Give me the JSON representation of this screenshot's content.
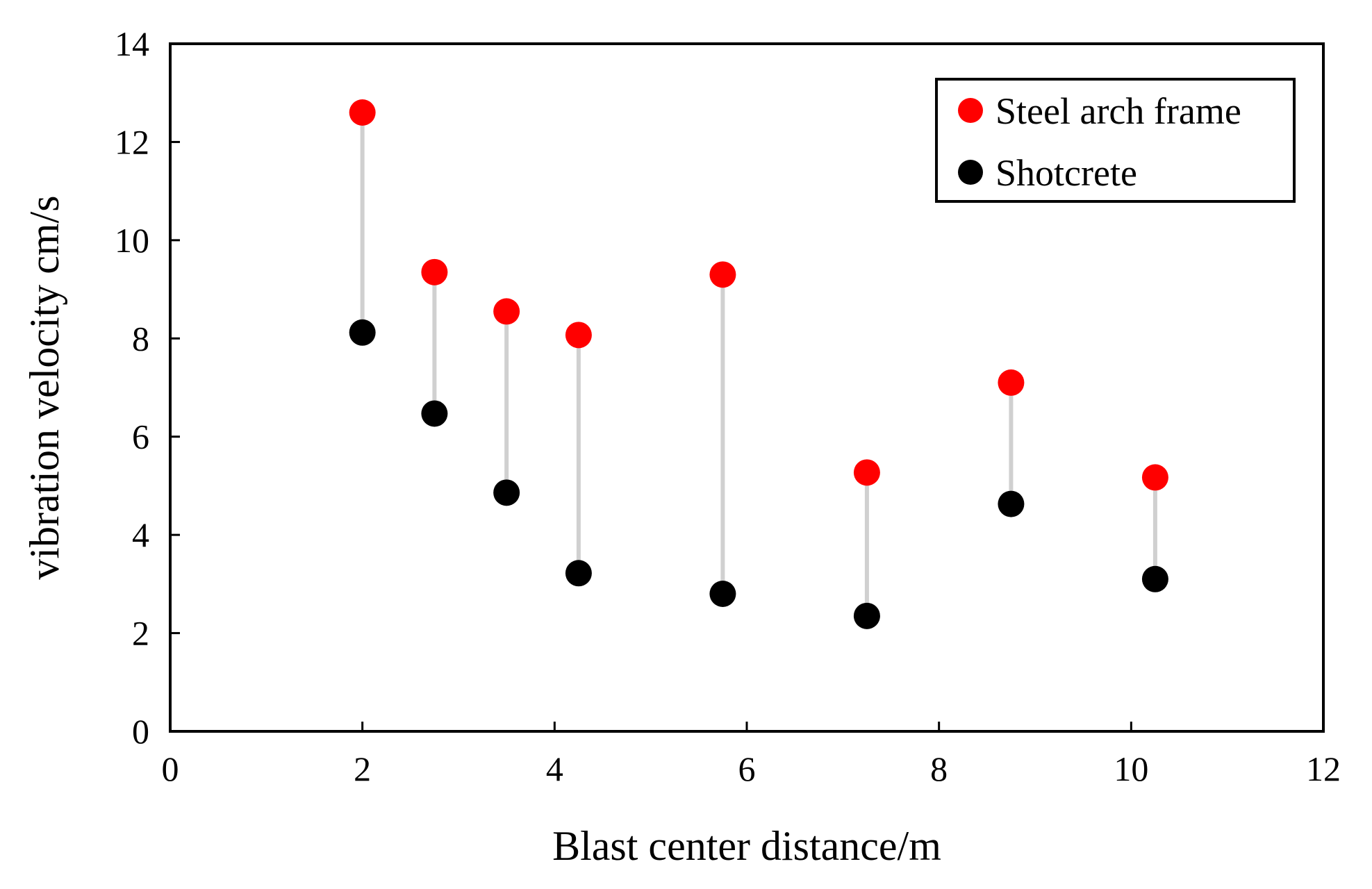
{
  "chart_data": {
    "type": "scatter",
    "title": "",
    "xlabel": "Blast center distance/m",
    "ylabel": "vibration velocity cm/s",
    "xlim": [
      0,
      12
    ],
    "ylim": [
      0,
      14
    ],
    "x_ticks": [
      0,
      2,
      4,
      6,
      8,
      10,
      12
    ],
    "y_ticks": [
      0,
      2,
      4,
      6,
      8,
      10,
      12,
      14
    ],
    "x_tick_labels": [
      "0",
      "2",
      "4",
      "6",
      "8",
      "10",
      "12"
    ],
    "y_tick_labels": [
      "0",
      "2",
      "4",
      "6",
      "8",
      "10",
      "12",
      "14"
    ],
    "grid": false,
    "legend_position": "top-right",
    "x": [
      2,
      2.75,
      3.5,
      4.25,
      5.75,
      7.25,
      8.75,
      10.25
    ],
    "series": [
      {
        "name": "Steel arch frame",
        "color": "#ff0000",
        "values": [
          12.6,
          9.35,
          8.55,
          8.07,
          9.3,
          5.27,
          7.1,
          5.17
        ]
      },
      {
        "name": "Shotcrete",
        "color": "#000000",
        "values": [
          8.12,
          6.47,
          4.86,
          3.22,
          2.8,
          2.35,
          4.63,
          3.1
        ]
      }
    ],
    "connector_color": "#d0d0d0"
  }
}
